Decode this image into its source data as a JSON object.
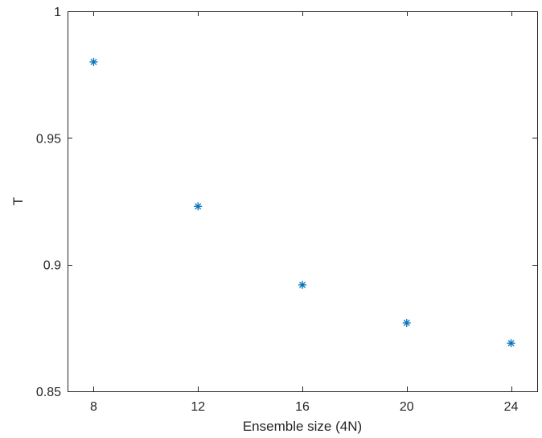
{
  "chart_data": {
    "type": "scatter",
    "xlabel": "Ensemble size (4N)",
    "ylabel": "T",
    "xlim": [
      7,
      25
    ],
    "ylim": [
      0.85,
      1
    ],
    "xticks": [
      8,
      12,
      16,
      20,
      24
    ],
    "yticks": [
      0.85,
      0.9,
      0.95,
      1
    ],
    "ytick_labels": [
      "0.85",
      "0.9",
      "0.95",
      "1"
    ],
    "xtick_labels": [
      "8",
      "12",
      "16",
      "20",
      "24"
    ],
    "marker": "asterisk",
    "grid": false,
    "series": [
      {
        "color": "#0072BD",
        "x": [
          8,
          12,
          16,
          20,
          24
        ],
        "y": [
          0.98,
          0.923,
          0.892,
          0.877,
          0.869
        ]
      }
    ]
  }
}
